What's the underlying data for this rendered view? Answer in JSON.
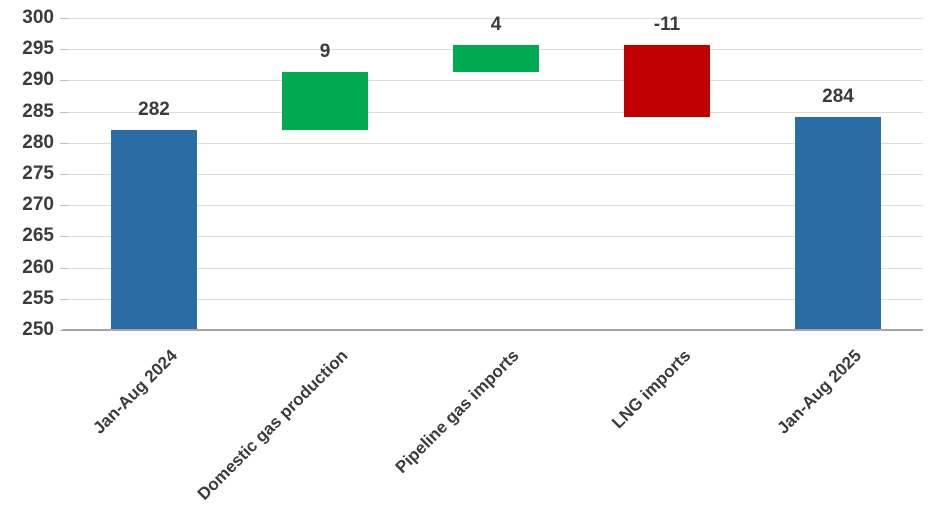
{
  "chart_data": {
    "type": "bar",
    "subtype": "waterfall",
    "title": "",
    "grid": true,
    "legend_position": "none",
    "y_axis": {
      "min": 250,
      "max": 300,
      "step": 5,
      "ticks": [
        300,
        295,
        290,
        285,
        280,
        275,
        270,
        265,
        260,
        255,
        250
      ]
    },
    "categories": [
      "Jan-Aug 2024",
      "Domestic gas production",
      "Pipeline gas imports",
      "LNG imports",
      "Jan-Aug 2025"
    ],
    "bars": [
      {
        "category": "Jan-Aug 2024",
        "label": "282",
        "value": 282,
        "role": "total",
        "start": 250,
        "end": 282
      },
      {
        "category": "Domestic gas production",
        "label": "9",
        "value": 9,
        "role": "increase",
        "start": 282,
        "end": 291.3
      },
      {
        "category": "Pipeline gas imports",
        "label": "4",
        "value": 4,
        "role": "increase",
        "start": 291.4,
        "end": 295.7
      },
      {
        "category": "LNG imports",
        "label": "-11",
        "value": -11,
        "role": "decrease",
        "start": 295.7,
        "end": 284.2
      },
      {
        "category": "Jan-Aug 2025",
        "label": "284",
        "value": 284,
        "role": "total",
        "start": 250,
        "end": 284.2
      }
    ],
    "colors": {
      "total": "#2A6CA4",
      "increase": "#00AA50",
      "decrease": "#C00000",
      "gridline": "#DCDCDC",
      "tick": "#BFBFBF",
      "axis_line": "#A6A6A6",
      "text": "#3B3B3B"
    }
  }
}
